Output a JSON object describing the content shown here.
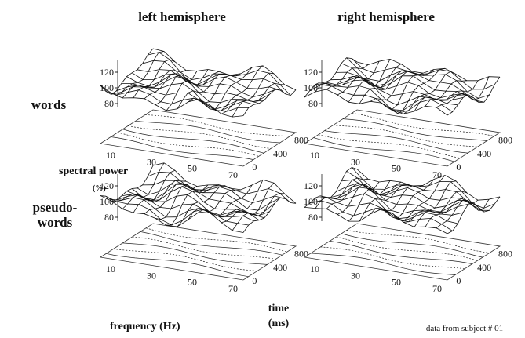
{
  "columns": [
    "left hemisphere",
    "right hemisphere"
  ],
  "rows": [
    "words",
    "pseudo-\nwords"
  ],
  "y_axis_label": "spectral power",
  "y_axis_unit": "(%)",
  "x_axis_label": "frequency (Hz)",
  "depth_axis_label": "time\n(ms)",
  "power_ticks": [
    120,
    100,
    80
  ],
  "frequency_ticks": [
    10,
    30,
    50,
    70
  ],
  "time_ticks": [
    0,
    400,
    800
  ],
  "note": "data from subject # 01"
}
